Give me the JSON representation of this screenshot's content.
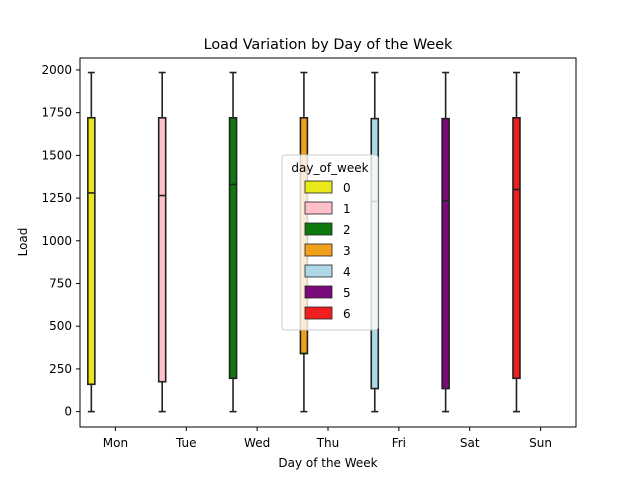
{
  "chart_data": {
    "type": "box",
    "title": "Load Variation by Day of the Week",
    "xlabel": "Day of the Week",
    "ylabel": "Load",
    "categories": [
      "Mon",
      "Tue",
      "Wed",
      "Thu",
      "Fri",
      "Sat",
      "Sun"
    ],
    "ylim": [
      -90,
      2070
    ],
    "yticks": [
      0,
      250,
      500,
      750,
      1000,
      1250,
      1500,
      1750,
      2000
    ],
    "hue_title": "day_of_week",
    "series": [
      {
        "name": "0",
        "color": "#e8e81a",
        "category": "Mon",
        "min": 0,
        "q1": 160,
        "median": 1280,
        "q3": 1720,
        "max": 1985
      },
      {
        "name": "1",
        "color": "#ffc0cb",
        "category": "Tue",
        "min": 0,
        "q1": 175,
        "median": 1265,
        "q3": 1720,
        "max": 1985
      },
      {
        "name": "2",
        "color": "#0e7a0e",
        "category": "Wed",
        "min": 0,
        "q1": 195,
        "median": 1330,
        "q3": 1720,
        "max": 1985
      },
      {
        "name": "3",
        "color": "#f0a01c",
        "category": "Thu",
        "min": 0,
        "q1": 340,
        "median": 340,
        "q3": 1720,
        "max": 1985
      },
      {
        "name": "4",
        "color": "#add8e6",
        "category": "Fri",
        "min": 0,
        "q1": 135,
        "median": 1230,
        "q3": 1715,
        "max": 1985
      },
      {
        "name": "5",
        "color": "#7a0a7a",
        "category": "Sat",
        "min": 0,
        "q1": 135,
        "median": 1235,
        "q3": 1715,
        "max": 1985
      },
      {
        "name": "6",
        "color": "#f01e1e",
        "category": "Sun",
        "min": 0,
        "q1": 195,
        "median": 1300,
        "q3": 1720,
        "max": 1985
      }
    ],
    "legend_position": "center",
    "grid": false
  }
}
